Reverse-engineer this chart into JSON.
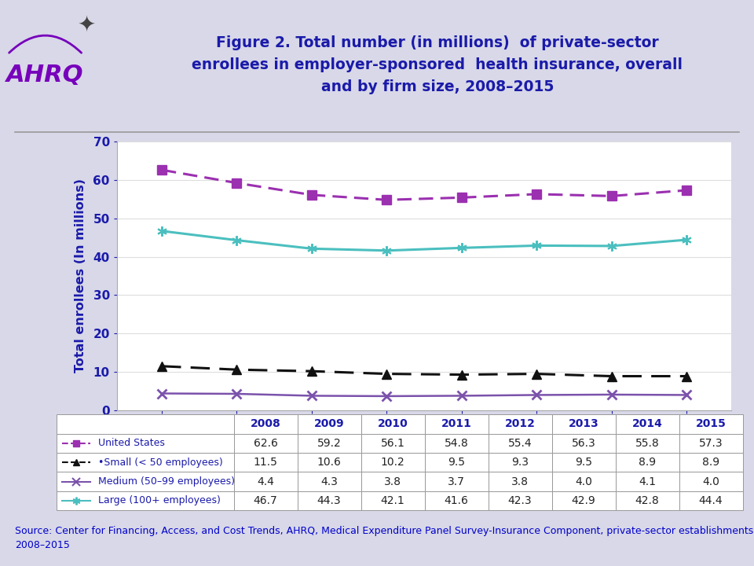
{
  "years": [
    2008,
    2009,
    2010,
    2011,
    2012,
    2013,
    2014,
    2015
  ],
  "united_states": [
    62.6,
    59.2,
    56.1,
    54.8,
    55.4,
    56.3,
    55.8,
    57.3
  ],
  "small": [
    11.5,
    10.6,
    10.2,
    9.5,
    9.3,
    9.5,
    8.9,
    8.9
  ],
  "medium": [
    4.4,
    4.3,
    3.8,
    3.7,
    3.8,
    4.0,
    4.1,
    4.0
  ],
  "large": [
    46.7,
    44.3,
    42.1,
    41.6,
    42.3,
    42.9,
    42.8,
    44.4
  ],
  "title_line1": "Figure 2. Total number (in millions)  of private-sector",
  "title_line2": "enrollees in employer-sponsored  health insurance, overall",
  "title_line3": "and by firm size, 2008–2015",
  "ylabel": "Total enrollees (In millions)",
  "ylim": [
    0,
    70
  ],
  "yticks": [
    0,
    10,
    20,
    30,
    40,
    50,
    60,
    70
  ],
  "color_us": "#9B30B0",
  "color_small": "#111111",
  "color_medium": "#7B52AB",
  "color_large": "#4BBFBF",
  "bg_color": "#D8D8E8",
  "title_color": "#1a1aaa",
  "axis_label_color": "#1a1aaa",
  "tick_label_color": "#1a1aaa",
  "source_color": "#0000CC",
  "source_text": "Source: Center for Financing, Access, and Cost Trends, AHRQ, Medical Expenditure Panel Survey-Insurance Component, private-sector establishments,\n2008–2015",
  "legend_labels": [
    "United States",
    "•Small (< 50 employees)",
    "Medium (50–99 employees)",
    "Large (100+ employees)"
  ],
  "table_years": [
    "2008",
    "2009",
    "2010",
    "2011",
    "2012",
    "2013",
    "2014",
    "2015"
  ],
  "table_us": [
    "62.6",
    "59.2",
    "56.1",
    "54.8",
    "55.4",
    "56.3",
    "55.8",
    "57.3"
  ],
  "table_small": [
    "11.5",
    "10.6",
    "10.2",
    "9.5",
    "9.3",
    "9.5",
    "8.9",
    "8.9"
  ],
  "table_medium": [
    "4.4",
    "4.3",
    "3.8",
    "3.7",
    "3.8",
    "4.0",
    "4.1",
    "4.0"
  ],
  "table_large": [
    "46.7",
    "44.3",
    "42.1",
    "41.6",
    "42.3",
    "42.9",
    "42.8",
    "44.4"
  ]
}
